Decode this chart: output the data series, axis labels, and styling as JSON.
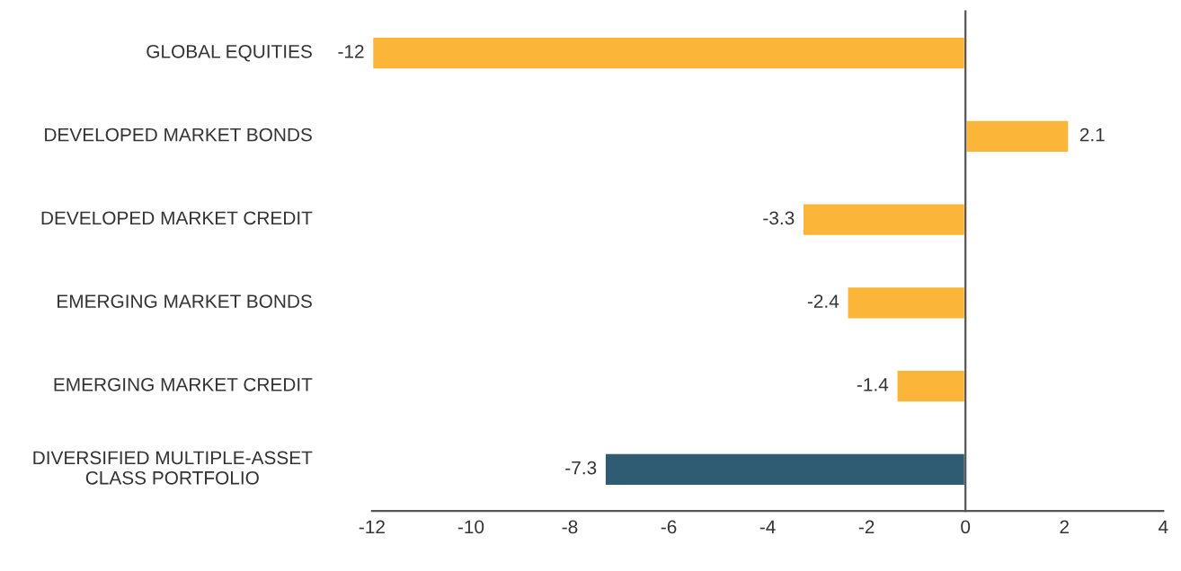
{
  "chart_data": {
    "type": "bar",
    "orientation": "horizontal",
    "categories": [
      "GLOBAL EQUITIES",
      "DEVELOPED MARKET BONDS",
      "DEVELOPED MARKET CREDIT",
      "EMERGING MARKET BONDS",
      "EMERGING MARKET CREDIT",
      "DIVERSIFIED MULTIPLE-ASSET\nCLASS PORTFOLIO"
    ],
    "values": [
      -12,
      2.1,
      -3.3,
      -2.4,
      -1.4,
      -7.3
    ],
    "colors": [
      "#fbb63a",
      "#fbb63a",
      "#fbb63a",
      "#fbb63a",
      "#fbb63a",
      "#2f5b73"
    ],
    "xlim": [
      -12,
      4
    ],
    "xticks": [
      -12,
      -10,
      -8,
      -6,
      -4,
      -2,
      0,
      2,
      4
    ],
    "data_labels": true,
    "legend": false
  }
}
